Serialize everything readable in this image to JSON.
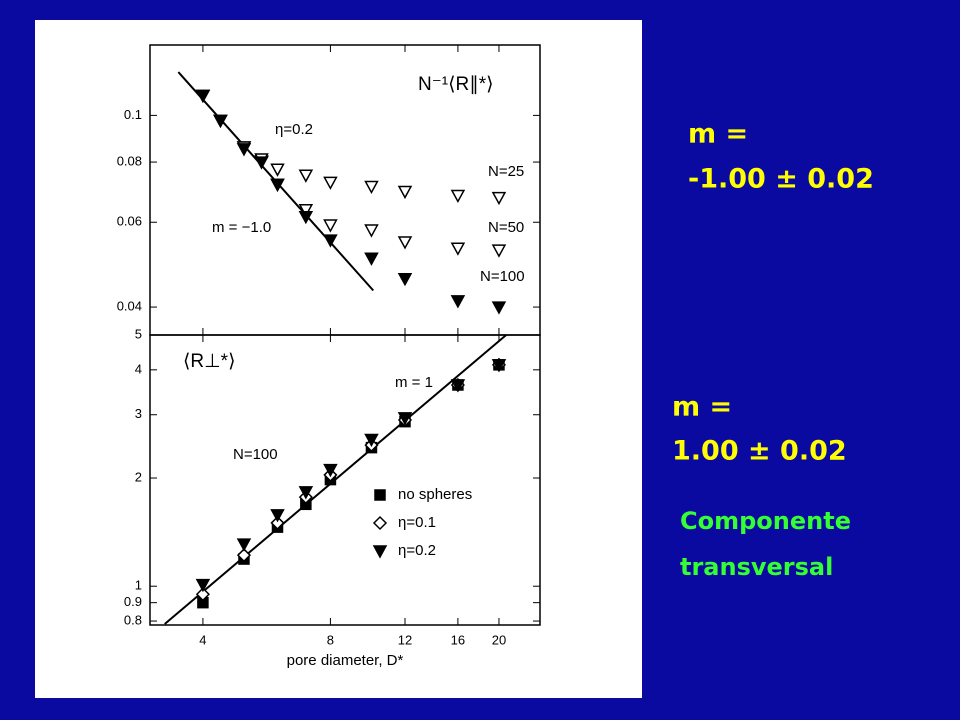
{
  "slide": {
    "fit_top": {
      "label": "m =",
      "value": "-1.00 ± 0.02"
    },
    "fit_bottom": {
      "label": "m =",
      "value": "1.00 ± 0.02"
    },
    "note": [
      "Componente",
      "transversal"
    ]
  },
  "chart_data": [
    {
      "type": "scatter",
      "title": "N⁻¹⟨R∥*⟩",
      "log_x": true,
      "log_y": true,
      "xlim": [
        3,
        25
      ],
      "ylim": [
        0.035,
        0.14
      ],
      "yticks": [
        0.1,
        0.08,
        0.06,
        0.04
      ],
      "annotations": [
        "η=0.2",
        "m = −1.0"
      ],
      "fit": {
        "x": [
          3.5,
          10.1
        ],
        "values": [
          0.123,
          0.0433
        ]
      },
      "series": [
        {
          "name": "N=25",
          "marker": "triangle-open",
          "color": "#000000",
          "x": [
            4,
            4.4,
            5,
            5.5,
            6,
            7,
            8,
            10,
            12,
            16,
            20
          ],
          "values": [
            0.11,
            0.0976,
            0.086,
            0.0804,
            0.0773,
            0.0751,
            0.0726,
            0.0712,
            0.0695,
            0.0682,
            0.0675
          ]
        },
        {
          "name": "N=50",
          "marker": "triangle-open",
          "color": "#000000",
          "x": [
            4,
            4.4,
            5,
            5.5,
            6,
            7,
            8,
            10,
            12,
            16,
            20
          ],
          "values": [
            0.11,
            0.0976,
            0.086,
            0.0812,
            0.0719,
            0.0637,
            0.0592,
            0.0578,
            0.0546,
            0.053,
            0.0525
          ]
        },
        {
          "name": "N=100",
          "marker": "triangle-filled",
          "color": "#000000",
          "x": [
            4,
            4.4,
            5,
            5.5,
            6,
            7,
            8,
            10,
            12,
            16,
            20
          ],
          "values": [
            0.11,
            0.0976,
            0.0852,
            0.08,
            0.0719,
            0.0616,
            0.0551,
            0.0505,
            0.0458,
            0.0412,
            0.04
          ]
        }
      ]
    },
    {
      "type": "scatter",
      "title": "⟨R⊥*⟩",
      "log_x": true,
      "log_y": true,
      "xlim": [
        3,
        25
      ],
      "ylim": [
        0.78,
        5
      ],
      "xticks": [
        4,
        8,
        12,
        16,
        20
      ],
      "yticks": [
        5,
        4,
        3,
        2,
        1,
        0.9,
        0.8
      ],
      "x_label": "pore diameter, D*",
      "annotations": [
        "m = 1",
        "N=100"
      ],
      "fit": {
        "x": [
          3.25,
          20.8
        ],
        "values": [
          0.785,
          5
        ]
      },
      "series": [
        {
          "name": "no spheres",
          "marker": "square-filled",
          "color": "#000000",
          "x": [
            4,
            5,
            6,
            7,
            8,
            10,
            12,
            16,
            20
          ],
          "values": [
            0.9,
            1.19,
            1.46,
            1.69,
            1.98,
            2.43,
            2.87,
            3.63,
            4.13
          ]
        },
        {
          "name": "η=0.1",
          "marker": "diamond-open",
          "color": "#000000",
          "x": [
            4,
            5,
            6,
            7,
            8,
            10,
            12,
            16,
            20
          ],
          "values": [
            0.95,
            1.22,
            1.5,
            1.77,
            2.04,
            2.47,
            2.9,
            3.63,
            4.13
          ]
        },
        {
          "name": "η=0.2",
          "marker": "triangle-filled",
          "color": "#000000",
          "x": [
            4,
            5,
            6,
            7,
            8,
            10,
            12,
            16,
            20
          ],
          "values": [
            1.01,
            1.31,
            1.58,
            1.83,
            2.11,
            2.56,
            2.94,
            3.63,
            4.13
          ]
        }
      ]
    }
  ]
}
